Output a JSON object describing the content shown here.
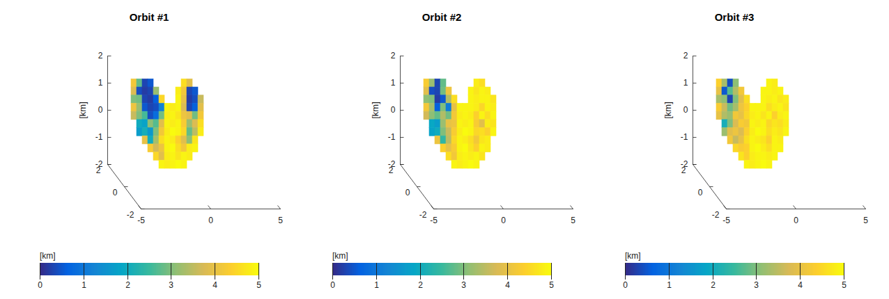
{
  "chart_data": [
    {
      "type": "surface",
      "title": "Orbit #1",
      "zlabel": "[km]",
      "xlim": [
        -5,
        5
      ],
      "xticks": [
        -5,
        0,
        5
      ],
      "ylim": [
        -2,
        2
      ],
      "yticks": [
        -2,
        0,
        2
      ],
      "zlim": [
        -2,
        2
      ],
      "zticks": [
        -2,
        -1,
        0,
        1,
        2
      ],
      "surface": {
        "y": 1.5,
        "x": [
          -3.4,
          -3.0,
          -2.6,
          -2.2,
          -1.8,
          -1.4,
          -1.0,
          -0.6,
          -0.2,
          0.2,
          0.6,
          1.0,
          1.4
        ],
        "z": [
          1.2,
          0.9,
          0.6,
          0.3,
          0,
          -0.3,
          -0.6,
          -0.9,
          -1.2,
          -1.5,
          -1.8
        ],
        "values": [
          [
            4.2,
            2.8,
            0.3,
            0.5,
            null,
            null,
            null,
            null,
            null,
            4.6,
            3.9,
            null,
            null
          ],
          [
            3.8,
            0.4,
            0.2,
            0.3,
            3.2,
            null,
            null,
            null,
            4.8,
            4.2,
            0.3,
            0.5,
            null
          ],
          [
            3.0,
            2.9,
            0.3,
            0.2,
            0.6,
            4.5,
            null,
            null,
            4.9,
            4.0,
            0.2,
            0.4,
            3.6
          ],
          [
            4.1,
            3.2,
            0.5,
            0.3,
            0.4,
            1.2,
            4.9,
            4.8,
            4.9,
            3.8,
            0.3,
            0.6,
            3.9
          ],
          [
            3.6,
            3.0,
            2.6,
            0.4,
            0.8,
            2.9,
            4.8,
            4.9,
            4.7,
            4.1,
            3.9,
            2.9,
            4.2
          ],
          [
            null,
            2.0,
            1.8,
            3.1,
            2.7,
            3.9,
            4.9,
            4.8,
            4.9,
            4.3,
            3.2,
            3.8,
            4.6
          ],
          [
            null,
            1.7,
            2.1,
            1.6,
            3.0,
            4.2,
            4.8,
            5.0,
            4.9,
            4.5,
            2.8,
            3.5,
            4.8
          ],
          [
            null,
            null,
            4.0,
            2.0,
            3.3,
            4.6,
            4.9,
            4.8,
            4.4,
            3.9,
            3.1,
            4.7,
            null
          ],
          [
            null,
            null,
            null,
            4.3,
            3.7,
            4.1,
            4.9,
            5.0,
            4.6,
            4.2,
            4.8,
            4.9,
            null
          ],
          [
            null,
            null,
            null,
            null,
            4.5,
            3.9,
            4.8,
            4.9,
            4.7,
            4.9,
            4.8,
            null,
            null
          ],
          [
            null,
            null,
            null,
            null,
            null,
            4.9,
            4.8,
            4.9,
            5.0,
            4.9,
            null,
            null,
            null
          ]
        ]
      },
      "colorbar": {
        "label": "[km]",
        "range": [
          0,
          5
        ],
        "ticks": [
          0,
          1,
          2,
          3,
          4,
          5
        ]
      }
    },
    {
      "type": "surface",
      "title": "Orbit #2",
      "zlabel": "[km]",
      "xlim": [
        -5,
        5
      ],
      "xticks": [
        -5,
        0,
        5
      ],
      "ylim": [
        -2,
        2
      ],
      "yticks": [
        -2,
        0,
        2
      ],
      "zlim": [
        -2,
        2
      ],
      "zticks": [
        -2,
        -1,
        0,
        1,
        2
      ],
      "surface": {
        "y": 1.5,
        "x": [
          -3.4,
          -3.0,
          -2.6,
          -2.2,
          -1.8,
          -1.4,
          -1.0,
          -0.6,
          -0.2,
          0.2,
          0.6,
          1.0,
          1.4
        ],
        "z": [
          1.2,
          0.9,
          0.6,
          0.3,
          0,
          -0.3,
          -0.6,
          -0.9,
          -1.2,
          -1.5,
          -1.8
        ],
        "values": [
          [
            4.3,
            3.2,
            0.3,
            2.8,
            null,
            null,
            null,
            null,
            null,
            4.8,
            4.6,
            null,
            null
          ],
          [
            3.9,
            0.4,
            0.3,
            2.9,
            4.1,
            null,
            null,
            null,
            4.9,
            4.7,
            4.9,
            4.8,
            null
          ],
          [
            3.1,
            3.0,
            0.2,
            0.5,
            3.4,
            4.6,
            null,
            null,
            4.9,
            4.8,
            4.9,
            4.9,
            4.7
          ],
          [
            4.2,
            3.3,
            0.6,
            3.0,
            1.1,
            4.0,
            4.9,
            4.9,
            4.9,
            4.8,
            4.5,
            4.9,
            4.8
          ],
          [
            3.7,
            3.1,
            2.8,
            3.4,
            2.9,
            4.2,
            4.8,
            4.9,
            4.8,
            4.4,
            4.9,
            4.6,
            4.9
          ],
          [
            null,
            1.9,
            1.7,
            3.2,
            4.0,
            4.1,
            4.9,
            4.8,
            4.9,
            4.3,
            3.9,
            4.8,
            4.7
          ],
          [
            null,
            1.8,
            2.0,
            3.0,
            3.6,
            4.3,
            4.8,
            5.0,
            4.9,
            4.5,
            4.6,
            4.4,
            4.9
          ],
          [
            null,
            null,
            4.1,
            2.4,
            3.5,
            4.5,
            4.9,
            4.8,
            4.6,
            4.2,
            4.7,
            4.8,
            null
          ],
          [
            null,
            null,
            null,
            4.4,
            4.0,
            4.3,
            4.9,
            5.0,
            4.7,
            4.4,
            4.9,
            4.8,
            null
          ],
          [
            null,
            null,
            null,
            null,
            4.6,
            4.2,
            4.8,
            4.9,
            4.8,
            4.9,
            4.7,
            null,
            null
          ],
          [
            null,
            null,
            null,
            null,
            null,
            4.9,
            4.8,
            4.9,
            5.0,
            4.9,
            null,
            null,
            null
          ]
        ]
      },
      "colorbar": {
        "label": "[km]",
        "range": [
          0,
          5
        ],
        "ticks": [
          0,
          1,
          2,
          3,
          4,
          5
        ]
      }
    },
    {
      "type": "surface",
      "title": "Orbit #3",
      "zlabel": "[km]",
      "xlim": [
        -5,
        5
      ],
      "xticks": [
        -5,
        0,
        5
      ],
      "ylim": [
        -2,
        2
      ],
      "yticks": [
        -2,
        0,
        2
      ],
      "zlim": [
        -2,
        2
      ],
      "zticks": [
        -2,
        -1,
        0,
        1,
        2
      ],
      "surface": {
        "y": 1.5,
        "x": [
          -3.4,
          -3.0,
          -2.6,
          -2.2,
          -1.8,
          -1.4,
          -1.0,
          -0.6,
          -0.2,
          0.2,
          0.6,
          1.0,
          1.4
        ],
        "z": [
          1.2,
          0.9,
          0.6,
          0.3,
          0,
          -0.3,
          -0.6,
          -0.9,
          -1.2,
          -1.5,
          -1.8
        ],
        "values": [
          [
            4.4,
            3.3,
            0.4,
            3.1,
            null,
            null,
            null,
            null,
            null,
            4.9,
            4.8,
            null,
            null
          ],
          [
            4.0,
            0.5,
            2.7,
            3.4,
            4.2,
            null,
            null,
            null,
            4.9,
            4.9,
            4.8,
            4.9,
            null
          ],
          [
            3.3,
            3.1,
            0.3,
            3.0,
            3.9,
            4.6,
            null,
            null,
            4.9,
            4.8,
            4.9,
            4.7,
            4.8
          ],
          [
            4.3,
            3.6,
            2.9,
            3.3,
            4.1,
            4.4,
            4.9,
            4.9,
            4.9,
            4.6,
            4.8,
            4.9,
            4.7
          ],
          [
            4.0,
            3.4,
            3.2,
            4.2,
            4.0,
            4.5,
            4.8,
            4.9,
            4.7,
            4.9,
            4.4,
            4.8,
            4.9
          ],
          [
            null,
            2.1,
            3.0,
            3.8,
            4.3,
            4.2,
            4.9,
            4.8,
            4.9,
            4.5,
            4.7,
            4.6,
            4.8
          ],
          [
            null,
            3.2,
            3.9,
            4.1,
            3.8,
            4.4,
            4.8,
            5.0,
            4.9,
            4.6,
            4.8,
            4.7,
            4.9
          ],
          [
            null,
            null,
            4.2,
            3.6,
            4.0,
            4.6,
            4.9,
            4.8,
            4.7,
            4.4,
            4.9,
            4.8,
            null
          ],
          [
            null,
            null,
            null,
            4.5,
            4.3,
            4.4,
            4.9,
            5.0,
            4.8,
            4.6,
            4.9,
            4.9,
            null
          ],
          [
            null,
            null,
            null,
            null,
            4.7,
            4.4,
            4.8,
            4.9,
            4.9,
            4.8,
            4.9,
            null,
            null
          ],
          [
            null,
            null,
            null,
            null,
            null,
            4.9,
            4.8,
            4.9,
            5.0,
            4.9,
            null,
            null,
            null
          ]
        ]
      },
      "colorbar": {
        "label": "[km]",
        "range": [
          0,
          5
        ],
        "ticks": [
          0,
          1,
          2,
          3,
          4,
          5
        ]
      }
    }
  ]
}
